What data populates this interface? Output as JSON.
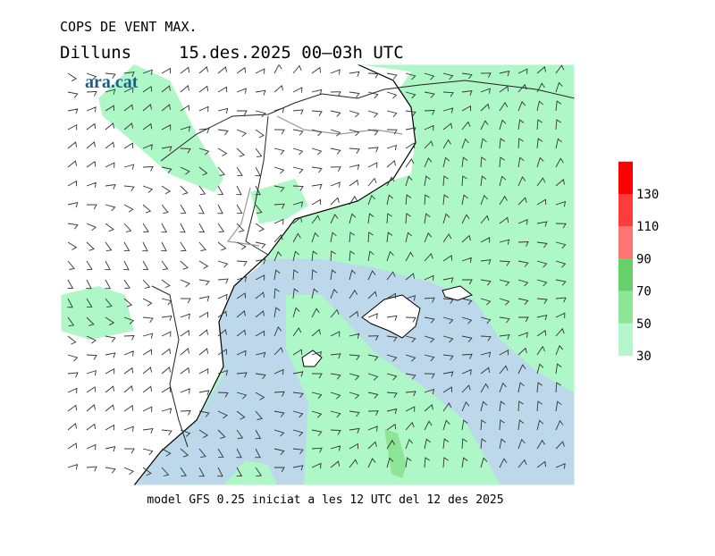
{
  "title": "COPS DE VENT MAX.",
  "day": "Dilluns",
  "date": "15.des.2025 00–03h UTC",
  "logo": "ara.cat",
  "footer": "model GFS 0.25 iniciat a les 12 UTC del 12 des 2025",
  "legend": {
    "levels": [
      30,
      50,
      70,
      90,
      110,
      130
    ],
    "colors": [
      "#b4f7cc",
      "#8ee597",
      "#66d06a",
      "#ff7474",
      "#ff3c3c",
      "#ff0000"
    ]
  }
}
